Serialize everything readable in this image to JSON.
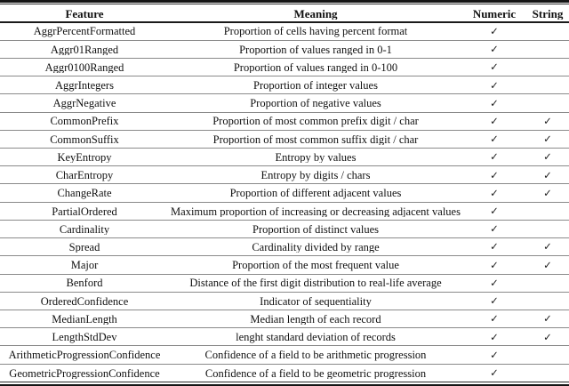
{
  "table": {
    "headers": {
      "feature": "Feature",
      "meaning": "Meaning",
      "numeric": "Numeric",
      "string": "String"
    },
    "check_glyph": "✓",
    "rows": [
      {
        "feature": "AggrPercentFormatted",
        "meaning": "Proportion of cells having percent format",
        "numeric": "✓",
        "string": ""
      },
      {
        "feature": "Aggr01Ranged",
        "meaning": "Proportion of values ranged in 0-1",
        "numeric": "✓",
        "string": ""
      },
      {
        "feature": "Aggr0100Ranged",
        "meaning": "Proportion of values ranged in 0-100",
        "numeric": "✓",
        "string": ""
      },
      {
        "feature": "AggrIntegers",
        "meaning": "Proportion of integer values",
        "numeric": "✓",
        "string": ""
      },
      {
        "feature": "AggrNegative",
        "meaning": "Proportion of negative values",
        "numeric": "✓",
        "string": ""
      },
      {
        "feature": "CommonPrefix",
        "meaning": "Proportion of most common prefix digit / char",
        "numeric": "✓",
        "string": "✓"
      },
      {
        "feature": "CommonSuffix",
        "meaning": "Proportion of most common suffix digit / char",
        "numeric": "✓",
        "string": "✓"
      },
      {
        "feature": "KeyEntropy",
        "meaning": "Entropy by values",
        "numeric": "✓",
        "string": "✓"
      },
      {
        "feature": "CharEntropy",
        "meaning": "Entropy by digits / chars",
        "numeric": "✓",
        "string": "✓"
      },
      {
        "feature": "ChangeRate",
        "meaning": "Proportion of different adjacent values",
        "numeric": "✓",
        "string": "✓"
      },
      {
        "feature": "PartialOrdered",
        "meaning": "Maximum proportion of increasing or decreasing adjacent values",
        "numeric": "✓",
        "string": ""
      },
      {
        "feature": "Cardinality",
        "meaning": "Proportion of distinct values",
        "numeric": "✓",
        "string": ""
      },
      {
        "feature": "Spread",
        "meaning": "Cardinality divided by range",
        "numeric": "✓",
        "string": "✓"
      },
      {
        "feature": "Major",
        "meaning": "Proportion of the most frequent value",
        "numeric": "✓",
        "string": "✓"
      },
      {
        "feature": "Benford",
        "meaning": "Distance of the first digit distribution to real-life average",
        "numeric": "✓",
        "string": ""
      },
      {
        "feature": "OrderedConfidence",
        "meaning": "Indicator of sequentiality",
        "numeric": "✓",
        "string": ""
      },
      {
        "feature": "MedianLength",
        "meaning": "Median length of each record",
        "numeric": "✓",
        "string": "✓"
      },
      {
        "feature": "LengthStdDev",
        "meaning": "lenght standard deviation of records",
        "numeric": "✓",
        "string": "✓"
      },
      {
        "feature": "ArithmeticProgressionConfidence",
        "meaning": "Confidence of a field to be arithmetic progression",
        "numeric": "✓",
        "string": ""
      },
      {
        "feature": "GeometricProgressionConfidence",
        "meaning": "Confidence of a field to be geometric progression",
        "numeric": "✓",
        "string": ""
      }
    ]
  }
}
